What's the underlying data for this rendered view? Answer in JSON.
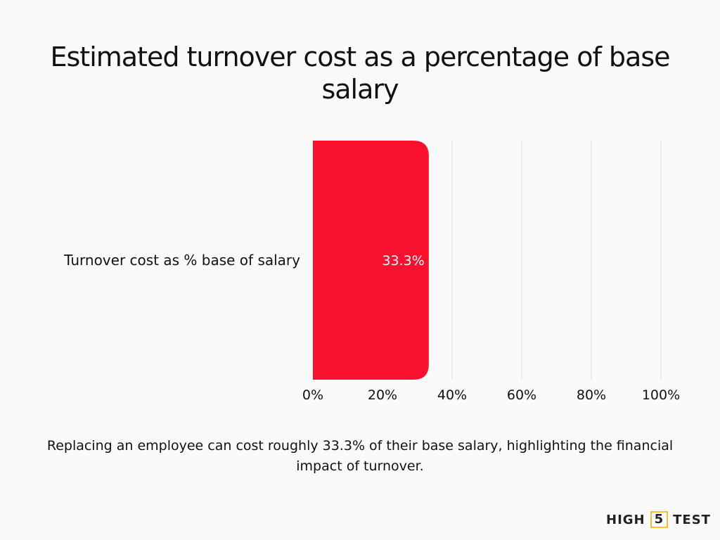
{
  "title": "Estimated turnover cost as a percentage of base salary",
  "caption": "Replacing an employee can cost roughly 33.3% of their base salary, highlighting the financial impact of turnover.",
  "logo": {
    "left": "HIGH",
    "mid": "5",
    "right": "TEST"
  },
  "chart_data": {
    "type": "bar",
    "orientation": "horizontal",
    "categories": [
      "Turnover cost as % base of salary"
    ],
    "values": [
      33.3
    ],
    "data_labels": [
      "33.3%"
    ],
    "xlim": [
      0,
      100
    ],
    "x_ticks": [
      "0%",
      "20%",
      "40%",
      "60%",
      "80%",
      "100%"
    ],
    "grid": true,
    "bar_color": "#f9112f"
  }
}
